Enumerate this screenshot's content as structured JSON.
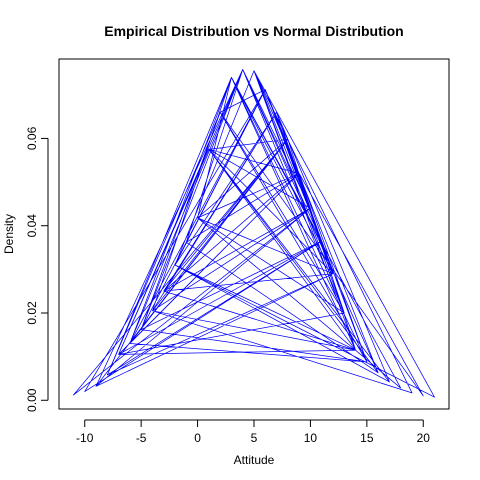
{
  "chart_data": {
    "type": "line",
    "title": "Empirical Distribution vs Normal Distribution",
    "xlabel": "Attitude",
    "ylabel": "Density",
    "xlim": [
      -12.28,
      22.28
    ],
    "ylim": [
      -0.002,
      0.0782
    ],
    "x_ticks": [
      -10,
      -5,
      0,
      5,
      10,
      15,
      20
    ],
    "y_ticks": [
      0.0,
      0.02,
      0.04,
      0.06
    ],
    "y_tick_labels": [
      "0.00",
      "0.02",
      "0.04",
      "0.06"
    ],
    "grid": false,
    "line_color": "#0000ff",
    "series": [
      {
        "x": [
          4,
          -7,
          14,
          1,
          8,
          -11,
          10,
          6,
          -5,
          15,
          3,
          0,
          12,
          -3,
          9,
          5,
          21,
          -2,
          7,
          13,
          2,
          -8,
          11,
          4,
          -1,
          16,
          6,
          -6,
          9,
          14,
          3,
          -4,
          19,
          5,
          8,
          -9,
          12,
          1,
          17,
          7,
          -3,
          10,
          4,
          -5,
          15,
          2,
          6,
          -10,
          11,
          3,
          18,
          0,
          9,
          -7,
          13,
          5,
          -2,
          14,
          8,
          -6,
          4,
          16,
          1,
          10,
          -4,
          7,
          12,
          -8,
          3,
          15,
          6,
          -1,
          9,
          20,
          2,
          -5,
          11,
          5,
          14,
          -3,
          8,
          0,
          13,
          4,
          -9,
          10,
          7,
          17,
          -2,
          6,
          12,
          3,
          -6,
          15,
          9,
          1,
          -7,
          11,
          5,
          14,
          -4,
          8
        ],
        "y": [
          0.0758,
          0.0105,
          0.0115,
          0.0575,
          0.0598,
          0.0012,
          0.044,
          0.0712,
          0.0162,
          0.0088,
          0.074,
          0.0418,
          0.029,
          0.025,
          0.052,
          0.0755,
          0.0007,
          0.031,
          0.066,
          0.02,
          0.066,
          0.0058,
          0.0365,
          0.0758,
          0.0362,
          0.0063,
          0.0712,
          0.013,
          0.052,
          0.0115,
          0.074,
          0.0205,
          0.0017,
          0.0755,
          0.0598,
          0.0032,
          0.029,
          0.0575,
          0.0042,
          0.066,
          0.025,
          0.044,
          0.0758,
          0.0162,
          0.0088,
          0.066,
          0.0712,
          0.002,
          0.0365,
          0.074,
          0.0028,
          0.0418,
          0.052,
          0.0105,
          0.02,
          0.0755,
          0.031,
          0.0115,
          0.0598,
          0.013,
          0.0758,
          0.0063,
          0.0575,
          0.044,
          0.0205,
          0.066,
          0.029,
          0.0058,
          0.074,
          0.0088,
          0.0712,
          0.0362,
          0.052,
          0.001,
          0.066,
          0.0162,
          0.0365,
          0.0755,
          0.0115,
          0.025,
          0.0598,
          0.0418,
          0.02,
          0.0758,
          0.0032,
          0.044,
          0.066,
          0.0042,
          0.031,
          0.0712,
          0.029,
          0.074,
          0.013,
          0.0088,
          0.052,
          0.0575,
          0.0105,
          0.0365,
          0.0755,
          0.0115,
          0.0205,
          0.0598
        ]
      }
    ]
  }
}
